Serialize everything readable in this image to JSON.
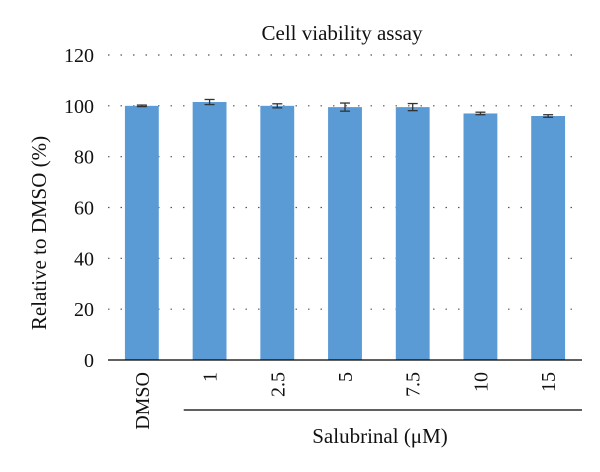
{
  "chart_data": {
    "type": "bar",
    "title": "Cell viability assay",
    "ylabel": "Relative to DMSO (%)",
    "group_label": "Salubrinal (μM)",
    "categories": [
      "DMSO",
      "1",
      "2.5",
      "5",
      "7.5",
      "10",
      "15"
    ],
    "values": [
      100,
      101.5,
      100,
      99.5,
      99.5,
      97,
      96
    ],
    "error": [
      0.3,
      1.0,
      0.8,
      1.6,
      1.4,
      0.5,
      0.5
    ],
    "ylim": [
      0,
      120
    ],
    "yticks": [
      "0",
      "20",
      "40",
      "60",
      "80",
      "100",
      "120"
    ],
    "grid": "dotted horizontal",
    "bar_color": "#5b9bd5"
  }
}
